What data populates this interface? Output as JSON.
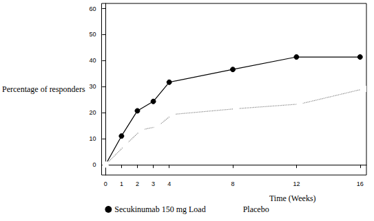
{
  "chart_data": {
    "type": "line",
    "x_label": "Time (Weeks)",
    "y_label": "Percentage of responders",
    "xlim": [
      -0.25,
      16.4
    ],
    "xticks": [
      0,
      1,
      2,
      3,
      4,
      8,
      12,
      16
    ],
    "ylim": [
      -4,
      62
    ],
    "yticks": [
      0,
      10,
      20,
      30,
      40,
      50,
      60
    ],
    "grid": false,
    "legend": "bottom",
    "series": [
      {
        "name": "Secukinumab 150 mg Load",
        "color": "#000000",
        "marker": "circle",
        "line_style": "solid",
        "x": [
          0,
          1,
          2,
          3,
          4,
          8,
          12,
          16
        ],
        "values": [
          0,
          11,
          20.7,
          24.3,
          31.7,
          36.6,
          41.4,
          41.4
        ]
      },
      {
        "name": "Placebo",
        "color": "#808080",
        "marker": "open_square",
        "line_style": "dotted",
        "x": [
          0,
          1.25,
          2.25,
          3.25,
          4.2,
          8.2,
          12.2,
          16.2
        ],
        "values": [
          0,
          7.6,
          13.4,
          14.6,
          19.3,
          21.5,
          23.3,
          29.1
        ]
      }
    ]
  }
}
